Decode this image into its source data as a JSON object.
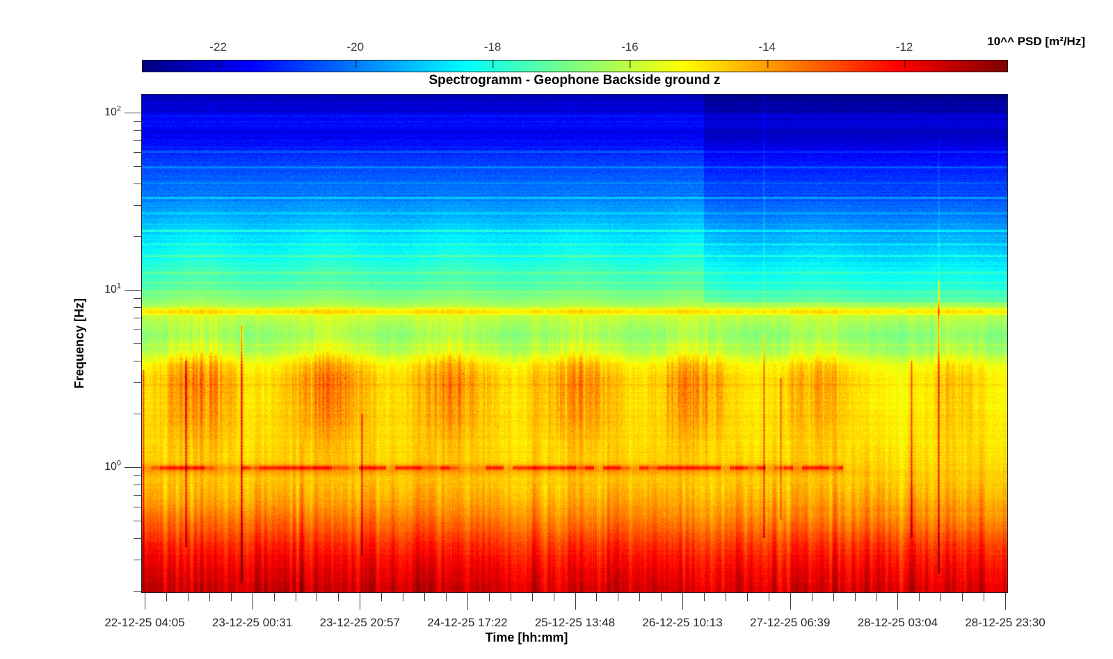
{
  "figure": {
    "title": "Spectrogramm - Geophone Backside ground z"
  },
  "colorbar": {
    "label": "10^^ PSD [m²/Hz]",
    "tick_labels": [
      "-22",
      "-20",
      "-18",
      "-16",
      "-14",
      "-12"
    ],
    "tick_values": [
      -22,
      -20,
      -18,
      -16,
      -14,
      -12
    ],
    "value_range": [
      -23.1,
      -10.5
    ],
    "colormap": "jet"
  },
  "axes": {
    "x": {
      "label": "Time [hh:mm]",
      "tick_labels": [
        "22-12-25 04:05",
        "23-12-25 00:31",
        "23-12-25 20:57",
        "24-12-25 17:22",
        "25-12-25 13:48",
        "26-12-25 10:13",
        "27-12-25 06:39",
        "28-12-25 03:04",
        "28-12-25 23:30"
      ],
      "minor_ticks_between": 4
    },
    "y": {
      "label": "Frequency [Hz]",
      "scale": "log",
      "ticks": [
        {
          "base": "10",
          "exp": "0"
        },
        {
          "base": "10",
          "exp": "1"
        },
        {
          "base": "10",
          "exp": "2"
        }
      ],
      "range_hz": [
        0.197,
        126.5
      ]
    }
  },
  "chart_data": {
    "type": "heatmap",
    "subtype": "spectrogram",
    "title": "Spectrogramm - Geophone Backside ground z",
    "xlabel": "Time [hh:mm]",
    "ylabel": "Frequency [Hz]",
    "colormap": "jet",
    "value_unit": "10^^ PSD [m²/Hz]",
    "value_range": [
      -23.1,
      -10.5
    ],
    "colorbar_ticks": [
      -22,
      -20,
      -18,
      -16,
      -14,
      -12
    ],
    "x_tick_labels": [
      "22-12-25 04:05",
      "23-12-25 00:31",
      "23-12-25 20:57",
      "24-12-25 17:22",
      "25-12-25 13:48",
      "26-12-25 10:13",
      "27-12-25 06:39",
      "28-12-25 03:04",
      "28-12-25 23:30"
    ],
    "y_scale": "log",
    "freq_range_hz": [
      0.197,
      126.5
    ],
    "freq_major_ticks_hz": [
      1,
      10,
      100
    ],
    "base_profile_log10hz_psd": [
      [
        -0.706,
        -11.5
      ],
      [
        -0.6,
        -11.8
      ],
      [
        -0.5,
        -12.3
      ],
      [
        -0.4,
        -12.9
      ],
      [
        -0.3,
        -13.55
      ],
      [
        -0.2,
        -14.1
      ],
      [
        -0.1,
        -14.5
      ],
      [
        0.0,
        -14.78
      ],
      [
        0.1,
        -14.9
      ],
      [
        0.2,
        -15.0
      ],
      [
        0.3,
        -15.1
      ],
      [
        0.4,
        -15.2
      ],
      [
        0.5,
        -15.1
      ],
      [
        0.58,
        -15.5
      ],
      [
        0.66,
        -16.5
      ],
      [
        0.74,
        -16.8
      ],
      [
        0.8,
        -16.5
      ],
      [
        0.84,
        -16.2
      ],
      [
        0.855,
        -16.0
      ],
      [
        0.87,
        -15.1
      ],
      [
        0.885,
        -15.1
      ],
      [
        0.905,
        -16.3
      ],
      [
        0.95,
        -16.9
      ],
      [
        1.0,
        -17.35
      ],
      [
        1.1,
        -17.9
      ],
      [
        1.2,
        -18.4
      ],
      [
        1.3,
        -18.85
      ],
      [
        1.4,
        -19.4
      ],
      [
        1.5,
        -19.9
      ],
      [
        1.6,
        -20.3
      ],
      [
        1.7,
        -20.7
      ],
      [
        1.8,
        -21.2
      ],
      [
        1.88,
        -21.8
      ],
      [
        1.95,
        -21.4
      ],
      [
        2.0,
        -21.9
      ],
      [
        2.102,
        -22.3
      ]
    ],
    "tonal_lines": [
      {
        "hz": 96,
        "boost": 0.55
      },
      {
        "hz": 60,
        "boost": 0.7
      },
      {
        "hz": 49,
        "boost": 1.0
      },
      {
        "hz": 40,
        "boost": 0.6
      },
      {
        "hz": 33,
        "boost": 1.2
      },
      {
        "hz": 27,
        "boost": 0.7
      },
      {
        "hz": 21.5,
        "boost": 1.2
      },
      {
        "hz": 18,
        "boost": 0.8
      },
      {
        "hz": 15.5,
        "boost": 1.1
      },
      {
        "hz": 12.5,
        "boost": 0.8
      },
      {
        "hz": 11,
        "boost": 0.7
      },
      {
        "hz": 9.7,
        "boost": 0.6
      },
      {
        "hz": 4.9,
        "boost": 0.4
      },
      {
        "hz": 2.9,
        "boost": 0.3
      }
    ],
    "activity_clusters": [
      {
        "t_frac": 0.0651,
        "width_frac": 0.084,
        "intensity": 1.0
      },
      {
        "t_frac": 0.2162,
        "width_frac": 0.088,
        "intensity": 1.0
      },
      {
        "t_frac": 0.3617,
        "width_frac": 0.088,
        "intensity": 0.95
      },
      {
        "t_frac": 0.5024,
        "width_frac": 0.092,
        "intensity": 0.9
      },
      {
        "t_frac": 0.6383,
        "width_frac": 0.08,
        "intensity": 0.95
      },
      {
        "t_frac": 0.779,
        "width_frac": 0.08,
        "intensity": 0.7
      },
      {
        "t_frac": 0.9397,
        "width_frac": 0.056,
        "intensity": 0.45
      }
    ],
    "one_hz_line": {
      "hz": 1.0,
      "boost": 1.9,
      "dashed": true,
      "end_t_frac": 0.81
    },
    "hf_quieting_step": {
      "start_t_frac": 0.6495,
      "above_log10hz": 0.93,
      "delta": -0.55
    },
    "transient_events": [
      {
        "t_frac": 0.0015,
        "log10hz_range": [
          -0.7,
          0.55
        ],
        "boost": 2.0
      },
      {
        "t_frac": 0.0506,
        "log10hz_range": [
          -0.45,
          0.6
        ],
        "boost": 2.2
      },
      {
        "t_frac": 0.1149,
        "log10hz_range": [
          -0.65,
          0.8
        ],
        "boost": 2.6
      },
      {
        "t_frac": 0.254,
        "log10hz_range": [
          -0.5,
          0.3
        ],
        "boost": 1.6
      },
      {
        "t_frac": 0.7186,
        "log10hz_range": [
          -0.4,
          0.75
        ],
        "boost": 2.0
      },
      {
        "t_frac": 0.7186,
        "log10hz_range": [
          0.75,
          2.1
        ],
        "boost": 0.5
      },
      {
        "t_frac": 0.7379,
        "log10hz_range": [
          -0.3,
          0.5
        ],
        "boost": 1.6
      },
      {
        "t_frac": 0.889,
        "log10hz_range": [
          -0.4,
          0.6
        ],
        "boost": 1.8
      },
      {
        "t_frac": 0.9204,
        "log10hz_range": [
          -0.6,
          1.05
        ],
        "boost": 2.4
      },
      {
        "t_frac": 0.9204,
        "log10hz_range": [
          1.05,
          1.9
        ],
        "boost": 0.45
      }
    ],
    "noise": {
      "speckle": 0.27,
      "row_stripes": 0.24,
      "column_streaks": 0.42
    }
  }
}
